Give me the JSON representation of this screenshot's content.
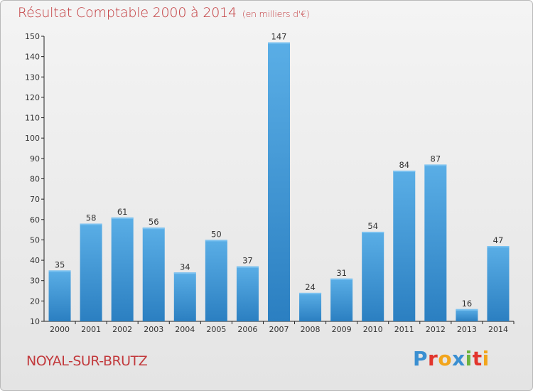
{
  "header": {
    "title": "Résultat Comptable 2000 à 2014",
    "subtitle": "(en milliers d'€)"
  },
  "footer": {
    "place": "NOYAL-SUR-BRUTZ",
    "brand": "Proxiti",
    "brand_letters": [
      {
        "char": "P",
        "color": "#3a8fd1"
      },
      {
        "char": "r",
        "color": "#e2352d"
      },
      {
        "char": "o",
        "color": "#f2a51c"
      },
      {
        "char": "x",
        "color": "#3a8fd1"
      },
      {
        "char": "i",
        "color": "#6cb33e"
      },
      {
        "char": "t",
        "color": "#e2352d"
      },
      {
        "char": "i",
        "color": "#f2a51c"
      }
    ]
  },
  "chart_data": {
    "type": "bar",
    "title": "Résultat Comptable 2000 à 2014",
    "subtitle": "(en milliers d'€)",
    "xlabel": "",
    "ylabel": "",
    "categories": [
      "2000",
      "2001",
      "2002",
      "2003",
      "2004",
      "2005",
      "2006",
      "2007",
      "2008",
      "2009",
      "2010",
      "2011",
      "2012",
      "2013",
      "2014"
    ],
    "values": [
      35,
      58,
      61,
      56,
      34,
      50,
      37,
      147,
      24,
      31,
      54,
      84,
      87,
      16,
      47
    ],
    "ylim": [
      10,
      150
    ],
    "yticks": [
      10,
      20,
      30,
      40,
      50,
      60,
      70,
      80,
      90,
      100,
      110,
      120,
      130,
      140,
      150
    ],
    "grid": false,
    "bar_color_top": "#5aaee6",
    "bar_color_bottom": "#2b7fc1",
    "axis_color": "#222222"
  }
}
